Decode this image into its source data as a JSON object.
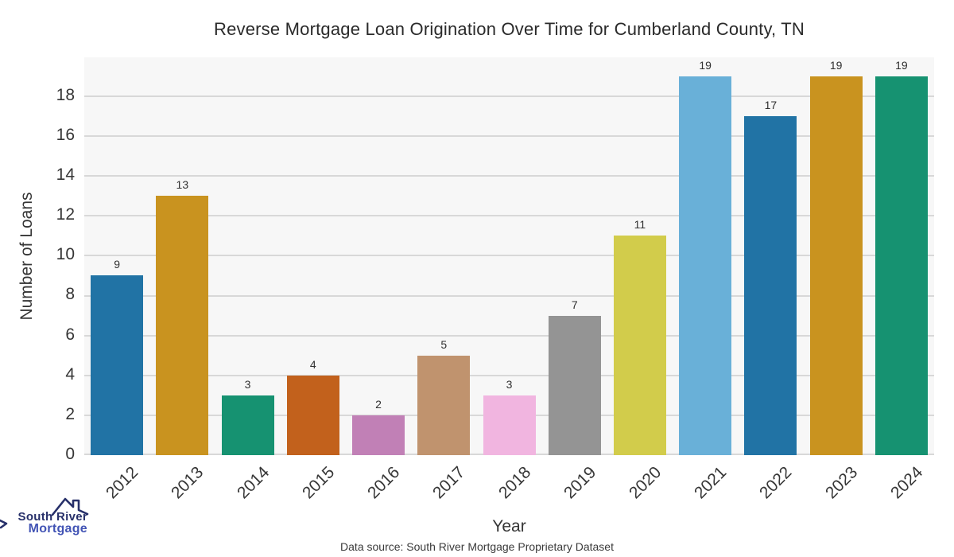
{
  "title": "Reverse Mortgage Loan Origination Over Time for Cumberland County, TN",
  "source_note": "Data source: South River Mortgage Proprietary Dataset",
  "logo": {
    "line1": "South River",
    "line2": "Mortgage",
    "text_color_primary": "#27306a",
    "text_color_secondary": "#4254b5"
  },
  "chart_data": {
    "type": "bar",
    "title": "Reverse Mortgage Loan Origination Over Time for Cumberland County, TN",
    "xlabel": "Year",
    "ylabel": "Number of Loans",
    "categories": [
      "2012",
      "2013",
      "2014",
      "2015",
      "2016",
      "2017",
      "2018",
      "2019",
      "2020",
      "2021",
      "2022",
      "2023",
      "2024"
    ],
    "values": [
      9,
      13,
      3,
      4,
      2,
      5,
      3,
      7,
      11,
      19,
      17,
      19,
      19
    ],
    "bar_colors": [
      "#2173a5",
      "#c9931f",
      "#169271",
      "#c2611c",
      "#c180b6",
      "#c0936e",
      "#f1b5e0",
      "#949494",
      "#d2cc4b",
      "#69b0d8",
      "#2173a5",
      "#c9931f",
      "#169271"
    ],
    "value_labels": [
      9,
      13,
      3,
      4,
      2,
      5,
      3,
      7,
      11,
      19,
      17,
      19,
      19
    ],
    "yticks": [
      0,
      2,
      4,
      6,
      8,
      10,
      12,
      14,
      16,
      18
    ],
    "ylim": [
      0,
      19.95
    ],
    "grid": true,
    "grid_color": "#d8d8d8",
    "plot_bg": "#f7f7f7",
    "legend": null
  }
}
